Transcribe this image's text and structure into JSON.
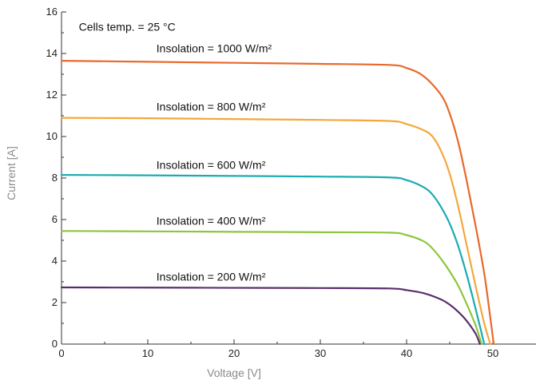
{
  "chart_data": {
    "type": "line",
    "title": "",
    "xlabel": "Voltage [V]",
    "ylabel": "Current [A]",
    "xlim": [
      0,
      55
    ],
    "ylim": [
      0,
      16
    ],
    "x_ticks": [
      0,
      10,
      20,
      30,
      40,
      50
    ],
    "y_ticks": [
      0,
      2,
      4,
      6,
      8,
      10,
      12,
      14,
      16
    ],
    "grid": false,
    "annotations": [
      {
        "text": "Cells temp. = 25 °C",
        "x": 2,
        "y": 15.1
      }
    ],
    "series": [
      {
        "label": "Insolation = 1000 W/m²",
        "color": "#E8692B",
        "label_pos": {
          "x": 11,
          "y": 14.05
        },
        "points": [
          [
            0,
            13.65
          ],
          [
            10,
            13.6
          ],
          [
            20,
            13.55
          ],
          [
            30,
            13.5
          ],
          [
            38,
            13.45
          ],
          [
            40,
            13.3
          ],
          [
            42,
            12.9
          ],
          [
            44,
            12.0
          ],
          [
            45,
            11.1
          ],
          [
            46,
            9.7
          ],
          [
            47,
            7.8
          ],
          [
            48,
            5.7
          ],
          [
            49,
            3.4
          ],
          [
            49.6,
            1.6
          ],
          [
            50.1,
            0
          ]
        ]
      },
      {
        "label": "Insolation = 800 W/m²",
        "color": "#F5A73B",
        "label_pos": {
          "x": 11,
          "y": 11.25
        },
        "points": [
          [
            0,
            10.9
          ],
          [
            10,
            10.88
          ],
          [
            20,
            10.84
          ],
          [
            30,
            10.8
          ],
          [
            38,
            10.75
          ],
          [
            40,
            10.6
          ],
          [
            42,
            10.3
          ],
          [
            43,
            10.0
          ],
          [
            44,
            9.3
          ],
          [
            45,
            8.2
          ],
          [
            46,
            6.6
          ],
          [
            47,
            4.7
          ],
          [
            48,
            2.8
          ],
          [
            49,
            1.0
          ],
          [
            49.7,
            0
          ]
        ]
      },
      {
        "label": "Insolation = 600 W/m²",
        "color": "#1AABB2",
        "label_pos": {
          "x": 11,
          "y": 8.45
        },
        "points": [
          [
            0,
            8.15
          ],
          [
            10,
            8.13
          ],
          [
            20,
            8.1
          ],
          [
            30,
            8.07
          ],
          [
            38,
            8.03
          ],
          [
            40,
            7.9
          ],
          [
            42,
            7.55
          ],
          [
            43,
            7.2
          ],
          [
            44,
            6.6
          ],
          [
            45,
            5.8
          ],
          [
            46,
            4.7
          ],
          [
            47,
            3.3
          ],
          [
            48,
            1.7
          ],
          [
            49,
            0
          ]
        ]
      },
      {
        "label": "Insolation = 400 W/m²",
        "color": "#8DC63F",
        "label_pos": {
          "x": 11,
          "y": 5.75
        },
        "points": [
          [
            0,
            5.45
          ],
          [
            10,
            5.43
          ],
          [
            20,
            5.41
          ],
          [
            30,
            5.39
          ],
          [
            38,
            5.37
          ],
          [
            40,
            5.25
          ],
          [
            42,
            4.95
          ],
          [
            43,
            4.6
          ],
          [
            44,
            4.1
          ],
          [
            45,
            3.5
          ],
          [
            46,
            2.8
          ],
          [
            47,
            1.9
          ],
          [
            48,
            0.9
          ],
          [
            48.7,
            0
          ]
        ]
      },
      {
        "label": "Insolation = 200 W/m²",
        "color": "#5A2E6E",
        "label_pos": {
          "x": 11,
          "y": 3.05
        },
        "points": [
          [
            0,
            2.73
          ],
          [
            10,
            2.72
          ],
          [
            20,
            2.71
          ],
          [
            30,
            2.7
          ],
          [
            38,
            2.68
          ],
          [
            40,
            2.6
          ],
          [
            42,
            2.45
          ],
          [
            44,
            2.15
          ],
          [
            45,
            1.9
          ],
          [
            46,
            1.55
          ],
          [
            47,
            1.1
          ],
          [
            48,
            0.5
          ],
          [
            48.5,
            0
          ]
        ]
      }
    ]
  }
}
